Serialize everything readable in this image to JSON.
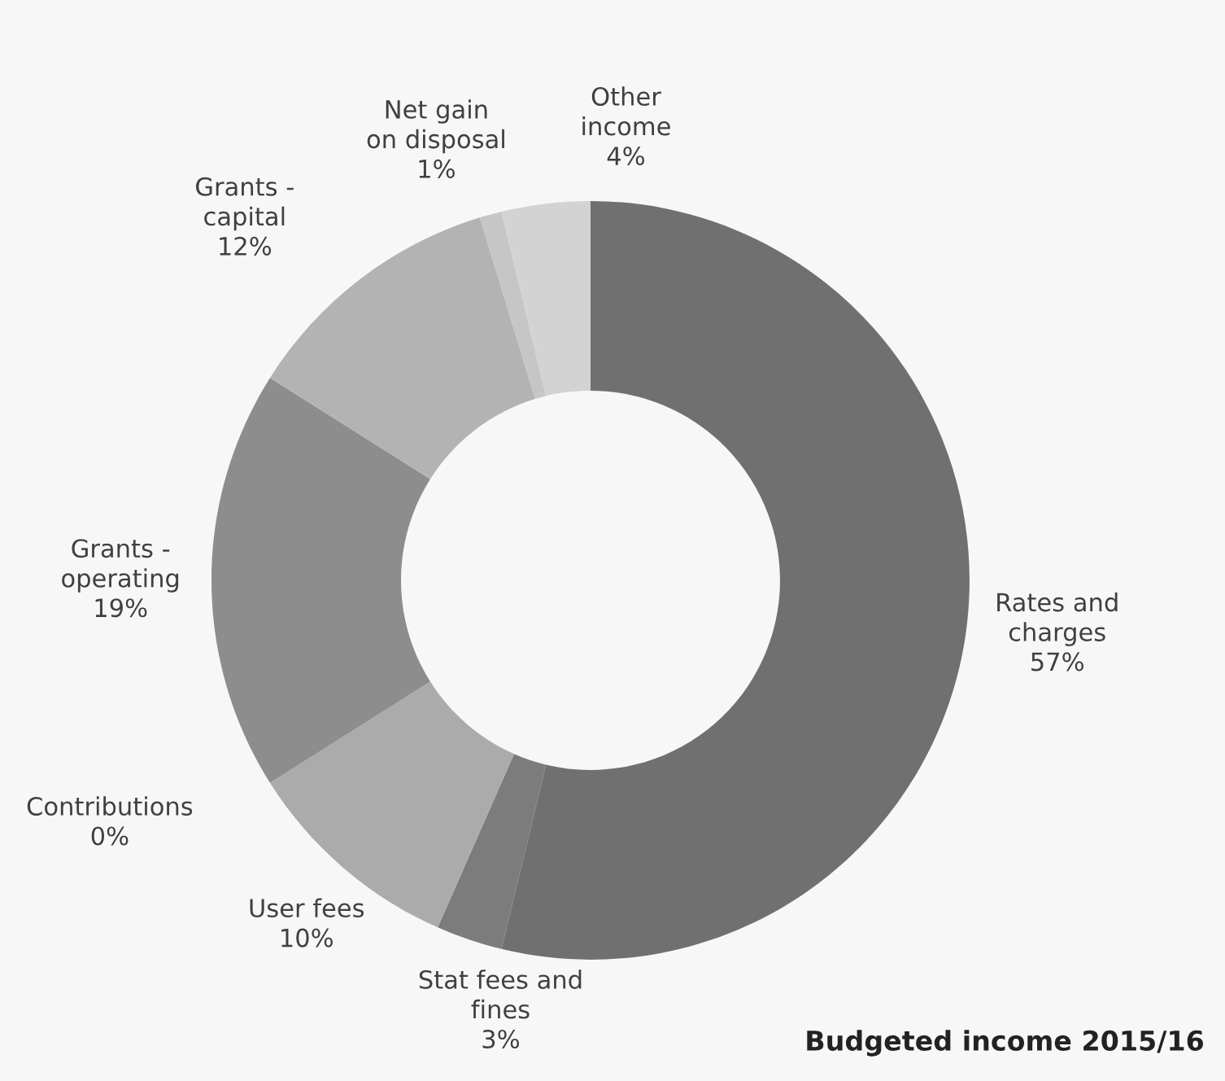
{
  "chart_data": {
    "type": "donut",
    "title": "Budgeted income 2015/16",
    "categories": [
      "Rates and\ncharges",
      "Stat fees and\nfines",
      "User fees",
      "Contributions",
      "Grants -\noperating",
      "Grants -\ncapital",
      "Net gain\non disposal",
      "Other\nincome"
    ],
    "values": [
      57,
      3,
      10,
      0,
      19,
      12,
      1,
      4
    ],
    "colors": [
      "#707070",
      "#7c7c7c",
      "#ababab",
      "#5c5c5c",
      "#8d8d8d",
      "#b3b3b3",
      "#c6c6c6",
      "#d3d3d3"
    ],
    "value_labels": [
      "57%",
      "3%",
      "10%",
      "0%",
      "19%",
      "12%",
      "1%",
      "4%"
    ],
    "legend": false
  }
}
